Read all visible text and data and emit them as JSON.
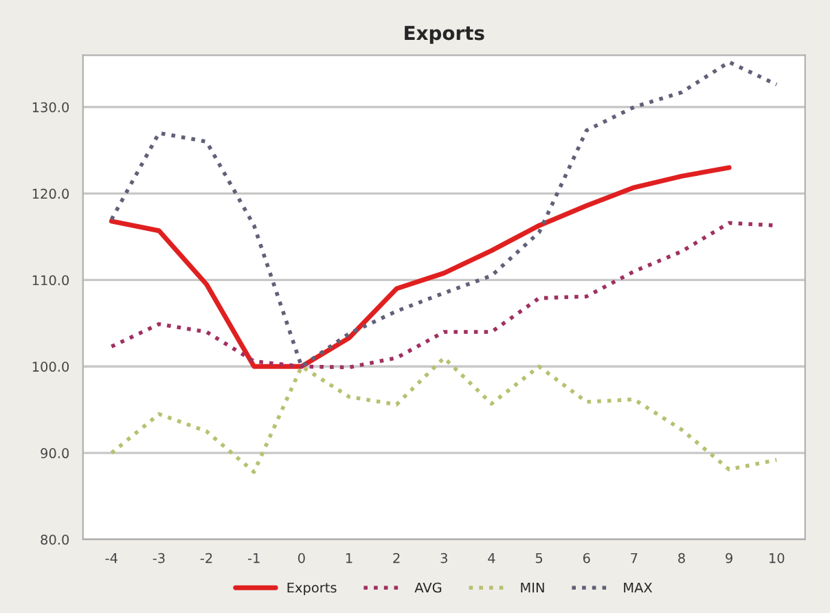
{
  "chart_data": {
    "type": "line",
    "title": "Exports",
    "x": [
      -4,
      -3,
      -2,
      -1,
      0,
      1,
      2,
      3,
      4,
      5,
      6,
      7,
      8,
      9,
      10
    ],
    "xlim": [
      -4.6,
      10.6
    ],
    "xticks": [
      -4,
      -3,
      -2,
      -1,
      0,
      1,
      2,
      3,
      4,
      5,
      6,
      7,
      8,
      9,
      10
    ],
    "ylim": [
      80,
      136
    ],
    "yticks": [
      {
        "value": 80,
        "label": "80.0"
      },
      {
        "value": 90,
        "label": "90.0"
      },
      {
        "value": 100,
        "label": "100.0"
      },
      {
        "value": 110,
        "label": "110.0"
      },
      {
        "value": 120,
        "label": "120.0"
      },
      {
        "value": 130,
        "label": "130.0"
      }
    ],
    "grid": "y",
    "legend": "bottom",
    "marker": "none",
    "series": [
      {
        "name": "Exports",
        "color": "#e02020",
        "line_style": "solid",
        "values": [
          116.8,
          115.7,
          109.5,
          100.0,
          100.0,
          103.3,
          109.0,
          110.8,
          113.4,
          116.3,
          118.6,
          120.7,
          122.0,
          123.0,
          null
        ]
      },
      {
        "name": "AVG",
        "color": "#a03060",
        "line_style": "dotted",
        "values": [
          102.3,
          104.9,
          104.0,
          100.6,
          100.0,
          99.9,
          101.0,
          104.0,
          104.0,
          107.9,
          108.1,
          111.0,
          113.3,
          116.6,
          116.3
        ]
      },
      {
        "name": "MIN",
        "color": "#b8c070",
        "line_style": "dotted",
        "values": [
          90.0,
          94.5,
          92.5,
          87.8,
          100.0,
          96.5,
          95.6,
          101.0,
          95.7,
          100.0,
          95.9,
          96.2,
          92.7,
          88.1,
          89.2
        ]
      },
      {
        "name": "MAX",
        "color": "#606078",
        "line_style": "dotted",
        "values": [
          117.0,
          127.0,
          126.0,
          116.3,
          100.0,
          103.8,
          106.4,
          108.5,
          110.5,
          115.5,
          127.3,
          130.0,
          131.7,
          135.2,
          132.6
        ]
      }
    ]
  }
}
